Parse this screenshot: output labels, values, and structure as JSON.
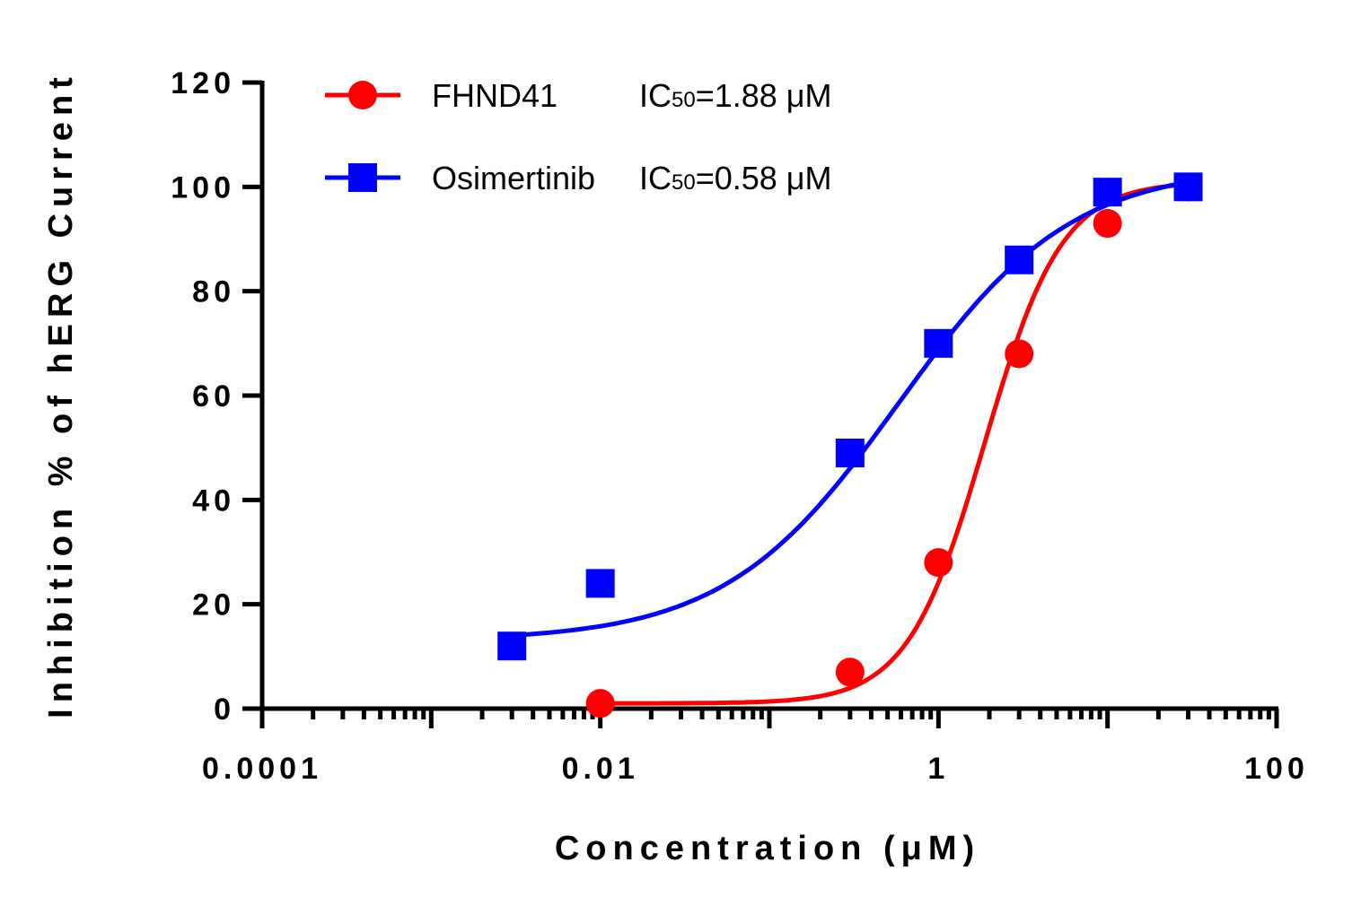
{
  "chart_data": {
    "type": "scatter",
    "x_scale": "log",
    "xlim": [
      0.0001,
      100
    ],
    "ylim": [
      0,
      120
    ],
    "xticks": [
      "0.0001",
      "0.01",
      "1",
      "100"
    ],
    "yticks": [
      "0",
      "20",
      "40",
      "60",
      "80",
      "100",
      "120"
    ],
    "xlabel": "Concentration (μM)",
    "ylabel": "Inhibition % of hERG Current",
    "legend_position": "top-left",
    "series": [
      {
        "name": "FHND41",
        "ic50_label": "IC",
        "ic50_sub": "50",
        "ic50_value": "=1.88 μM",
        "color": "#ff0000",
        "marker": "circle",
        "x": [
          0.01,
          0.3,
          1,
          3,
          10,
          30
        ],
        "y": [
          1,
          7,
          28,
          68,
          93,
          100
        ],
        "fit_ic50": 1.88,
        "fit_hill": 1.9,
        "fit_bottom": 1,
        "fit_top": 101
      },
      {
        "name": "Osimertinib",
        "ic50_label": "IC",
        "ic50_sub": "50",
        "ic50_value": "=0.58 μM",
        "color": "#0000ff",
        "marker": "square",
        "x": [
          0.003,
          0.01,
          0.3,
          1,
          3,
          10,
          30
        ],
        "y": [
          12,
          24,
          49,
          70,
          86,
          99,
          100
        ],
        "fit_ic50": 0.58,
        "fit_hill": 0.85,
        "fit_bottom": 13,
        "fit_top": 104
      }
    ]
  }
}
